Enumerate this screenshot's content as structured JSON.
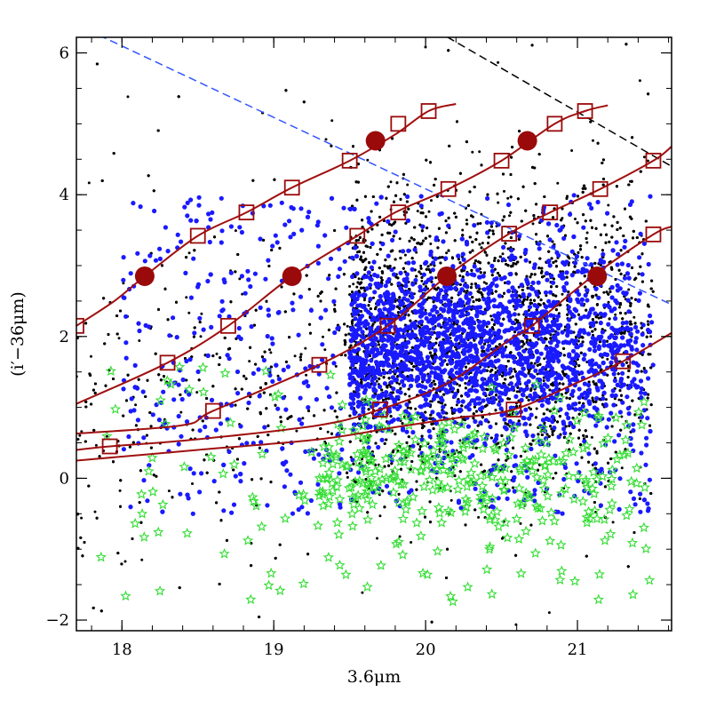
{
  "chart_data": {
    "type": "scatter",
    "title": "",
    "xlabel": "3.6μm",
    "ylabel": "(i′−36μm)",
    "xlim": [
      17.7,
      21.62
    ],
    "ylim": [
      -2.15,
      6.22
    ],
    "xticks": [
      18,
      19,
      20,
      21
    ],
    "yticks": [
      -2,
      0,
      2,
      4,
      6
    ],
    "grid": false,
    "colors": {
      "field_points": "#000000",
      "blue_points": "#1a1aff",
      "green_stars": "#33dd33",
      "tracks": "#a01010",
      "markers": "#9a0a0a",
      "blue_dashed_line": "#3355ff",
      "black_dashed_line": "#000000"
    },
    "tracks": [
      {
        "points": [
          [
            17.7,
            2.15
          ],
          [
            17.95,
            2.5
          ],
          [
            18.15,
            2.85
          ],
          [
            18.5,
            3.42
          ],
          [
            18.82,
            3.75
          ],
          [
            19.12,
            4.1
          ],
          [
            19.5,
            4.48
          ],
          [
            19.8,
            4.85
          ],
          [
            20.02,
            5.18
          ],
          [
            20.2,
            5.28
          ]
        ]
      },
      {
        "points": [
          [
            17.7,
            1.05
          ],
          [
            18.3,
            1.63
          ],
          [
            18.7,
            2.15
          ],
          [
            19.12,
            2.85
          ],
          [
            19.55,
            3.42
          ],
          [
            19.8,
            3.75
          ],
          [
            20.15,
            4.08
          ],
          [
            20.5,
            4.48
          ],
          [
            20.85,
            5.0
          ],
          [
            21.05,
            5.18
          ],
          [
            21.2,
            5.26
          ]
        ]
      },
      {
        "points": [
          [
            17.7,
            0.63
          ],
          [
            18.4,
            0.75
          ],
          [
            18.6,
            0.95
          ],
          [
            19.3,
            1.6
          ],
          [
            19.75,
            2.15
          ],
          [
            20.14,
            2.85
          ],
          [
            20.55,
            3.45
          ],
          [
            20.82,
            3.75
          ],
          [
            21.15,
            4.08
          ],
          [
            21.5,
            4.48
          ],
          [
            21.62,
            4.68
          ]
        ]
      },
      {
        "points": [
          [
            17.7,
            0.4
          ],
          [
            17.92,
            0.45
          ],
          [
            18.5,
            0.55
          ],
          [
            19.3,
            0.75
          ],
          [
            19.7,
            0.97
          ],
          [
            20.15,
            1.35
          ],
          [
            20.55,
            1.95
          ],
          [
            20.7,
            2.15
          ],
          [
            21.1,
            2.85
          ],
          [
            21.5,
            3.44
          ],
          [
            21.62,
            3.55
          ]
        ]
      },
      {
        "points": [
          [
            17.7,
            0.25
          ],
          [
            18.5,
            0.4
          ],
          [
            19.3,
            0.55
          ],
          [
            19.8,
            0.72
          ],
          [
            20.2,
            0.85
          ],
          [
            20.58,
            0.97
          ],
          [
            21.0,
            1.35
          ],
          [
            21.3,
            1.65
          ],
          [
            21.62,
            2.05
          ]
        ]
      }
    ],
    "square_markers": [
      [
        17.7,
        2.15
      ],
      [
        18.5,
        3.42
      ],
      [
        18.82,
        3.75
      ],
      [
        19.12,
        4.1
      ],
      [
        19.5,
        4.48
      ],
      [
        19.82,
        5.0
      ],
      [
        20.02,
        5.18
      ],
      [
        18.3,
        1.63
      ],
      [
        18.7,
        2.15
      ],
      [
        19.55,
        3.42
      ],
      [
        19.82,
        3.75
      ],
      [
        20.15,
        4.08
      ],
      [
        20.5,
        4.48
      ],
      [
        20.85,
        5.0
      ],
      [
        21.05,
        5.18
      ],
      [
        18.6,
        0.95
      ],
      [
        19.3,
        1.6
      ],
      [
        19.75,
        2.15
      ],
      [
        20.55,
        3.45
      ],
      [
        20.82,
        3.75
      ],
      [
        21.15,
        4.08
      ],
      [
        21.5,
        4.48
      ],
      [
        17.92,
        0.45
      ],
      [
        19.7,
        0.97
      ],
      [
        20.7,
        2.15
      ],
      [
        21.5,
        3.44
      ],
      [
        20.58,
        0.97
      ],
      [
        21.3,
        1.65
      ]
    ],
    "circle_markers": [
      [
        18.15,
        2.85
      ],
      [
        19.12,
        2.85
      ],
      [
        20.14,
        2.85
      ],
      [
        21.13,
        2.85
      ],
      [
        19.67,
        4.76
      ],
      [
        20.67,
        4.76
      ]
    ],
    "dashed_lines": [
      {
        "color": "blue",
        "points": [
          [
            17.7,
            6.4
          ],
          [
            21.62,
            2.45
          ]
        ]
      },
      {
        "color": "black",
        "points": [
          [
            20.0,
            6.4
          ],
          [
            21.62,
            4.4
          ]
        ]
      }
    ],
    "point_clouds": [
      {
        "color": "black",
        "marker": "dot",
        "approx_count": 9000,
        "x_range": [
          17.7,
          21.5
        ],
        "y_range": [
          -2.1,
          6.2
        ],
        "dense_region": {
          "x": [
            19.5,
            21.5
          ],
          "y": [
            -0.5,
            4.5
          ]
        }
      },
      {
        "color": "blue",
        "marker": "dot",
        "approx_count": 2600,
        "x_range": [
          18.0,
          21.5
        ],
        "y_range": [
          -0.5,
          4.0
        ],
        "dense_region": {
          "x": [
            19.5,
            21.5
          ],
          "y": [
            0.5,
            3.2
          ]
        }
      },
      {
        "color": "green",
        "marker": "star",
        "approx_count": 400,
        "x_range": [
          17.85,
          21.5
        ],
        "y_range": [
          -1.8,
          1.6
        ],
        "dense_region": {
          "x": [
            19.3,
            21.5
          ],
          "y": [
            -0.8,
            1.0
          ]
        }
      }
    ]
  }
}
